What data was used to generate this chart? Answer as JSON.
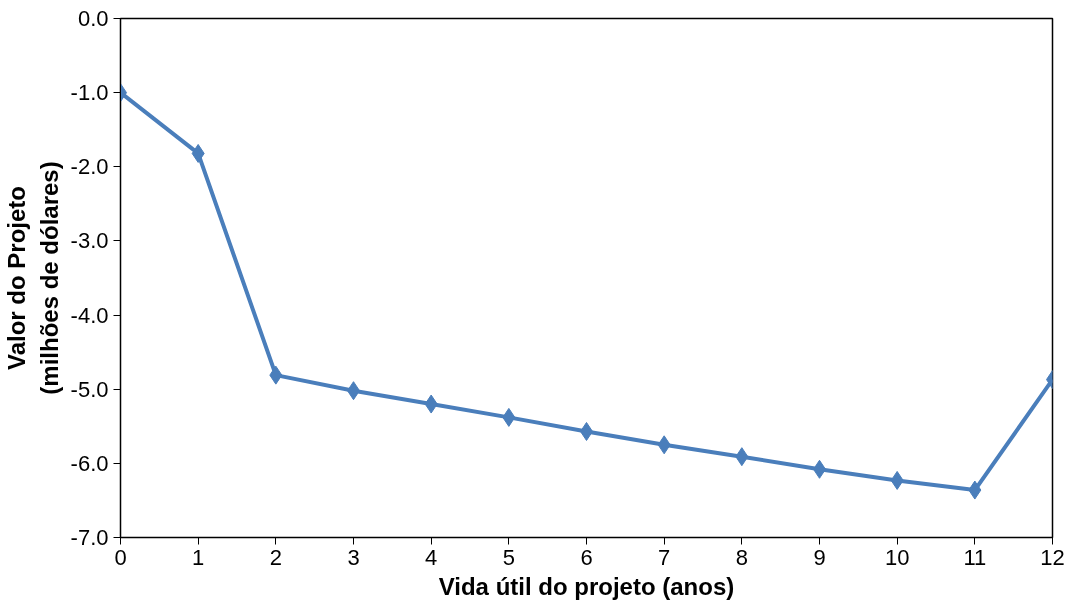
{
  "chart_data": {
    "type": "line",
    "xlabel": "Vida útil do projeto (anos)",
    "ylabel": "Valor do Projeto\n(milhões de dólares)",
    "x": [
      0,
      1,
      2,
      3,
      4,
      5,
      6,
      7,
      8,
      9,
      10,
      11,
      12
    ],
    "series": [
      {
        "color": "#4a7ebb",
        "values": [
          -1.0,
          -1.82,
          -4.81,
          -5.02,
          -5.2,
          -5.38,
          -5.57,
          -5.75,
          -5.91,
          -6.08,
          -6.23,
          -6.36,
          -4.87
        ]
      }
    ],
    "xlim": [
      0,
      12
    ],
    "xticks": [
      0,
      1,
      2,
      3,
      4,
      5,
      6,
      7,
      8,
      9,
      10,
      11,
      12
    ],
    "ylim": [
      -7,
      0
    ],
    "yticks": [
      {
        "value": -7,
        "label": "-7.0"
      },
      {
        "value": -6,
        "label": "-6.0"
      },
      {
        "value": -5,
        "label": "-5.0"
      },
      {
        "value": -4,
        "label": "-4.0"
      },
      {
        "value": -3,
        "label": "-3.0"
      },
      {
        "value": -2,
        "label": "-2.0"
      },
      {
        "value": -1,
        "label": "-1.0"
      },
      {
        "value": 0,
        "label": "0.0"
      }
    ],
    "grid": false,
    "marker": "diamond",
    "line_style": "solid"
  }
}
